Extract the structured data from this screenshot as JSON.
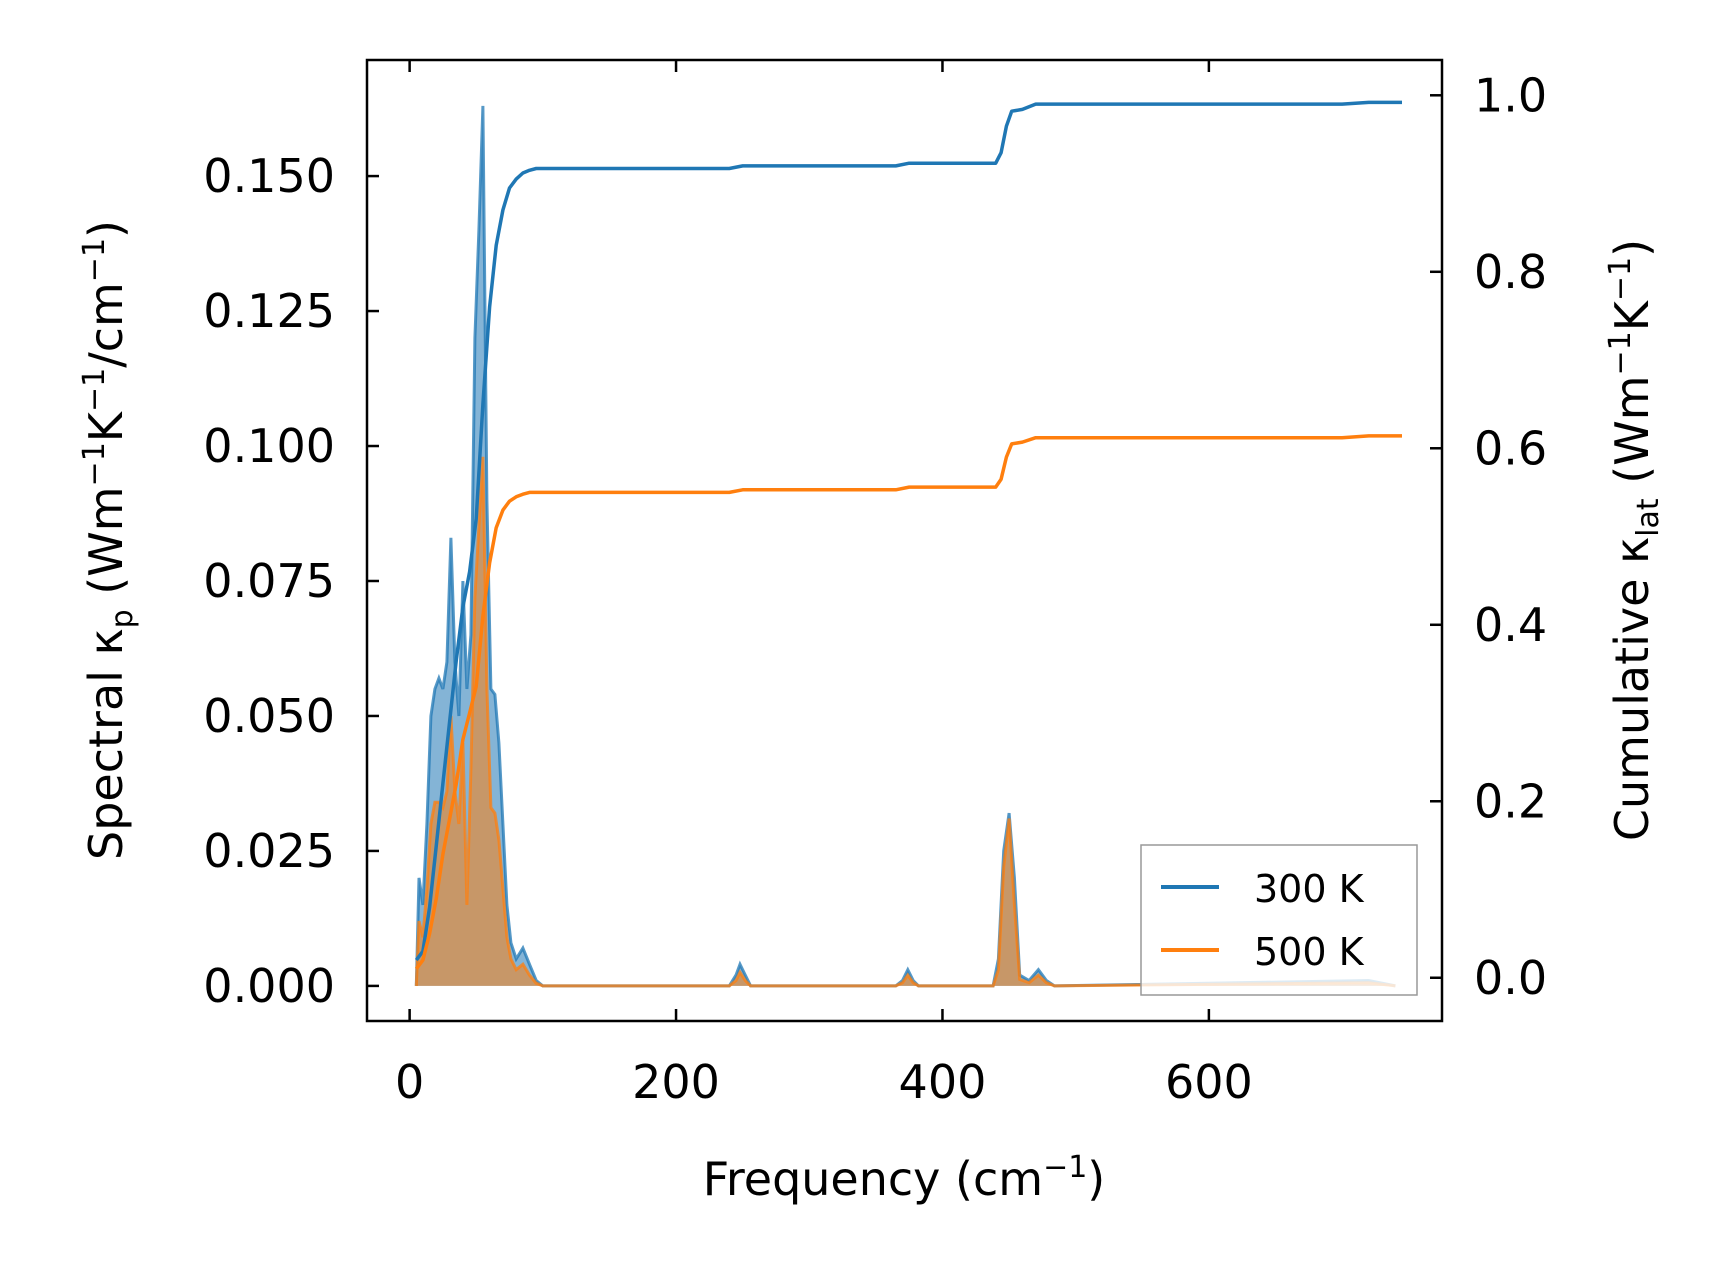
{
  "chart_data": {
    "type": "line",
    "xlabel_main": "Frequency (cm",
    "xlabel_sup": "−1",
    "xlabel_end": ")",
    "ylabel_left": {
      "a": "Spectral κ",
      "b_sub": "p",
      "c": " (Wm",
      "d_sup": "−1",
      "e": "K",
      "f_sup": "−1",
      "g": "/cm",
      "h_sup": "−1",
      "i": ")"
    },
    "ylabel_right": {
      "a": "Cumulative κ",
      "b_sub": "lat",
      "c": " (Wm",
      "d_sup": "−1",
      "e": "K",
      "f_sup": "−1",
      "g": ")"
    },
    "xlim": [
      -32,
      775
    ],
    "ylim_left": [
      -0.0065,
      0.1715
    ],
    "ylim_right": [
      -0.049,
      1.04
    ],
    "x_ticks": [
      0,
      200,
      400,
      600
    ],
    "x_tick_labels": [
      "0",
      "200",
      "400",
      "600"
    ],
    "y_left_ticks": [
      0.0,
      0.025,
      0.05,
      0.075,
      0.1,
      0.125,
      0.15
    ],
    "y_left_tick_labels": [
      "0.000",
      "0.025",
      "0.050",
      "0.075",
      "0.100",
      "0.125",
      "0.150"
    ],
    "y_right_ticks": [
      0.0,
      0.2,
      0.4,
      0.6,
      0.8,
      1.0
    ],
    "y_right_tick_labels": [
      "0.0",
      "0.2",
      "0.4",
      "0.6",
      "0.8",
      "1.0"
    ],
    "legend": {
      "position": "lower-right",
      "entries": [
        "300 K",
        "500 K"
      ]
    },
    "colors": {
      "s300": "#1f77b4",
      "s500": "#ff7f0e"
    },
    "spectral_300K": {
      "x": [
        5,
        7,
        10,
        13,
        16,
        19,
        22,
        25,
        28,
        31,
        34,
        37,
        40,
        43,
        46,
        49,
        52,
        55,
        58,
        61,
        64,
        67,
        70,
        73,
        76,
        80,
        85,
        90,
        95,
        100,
        240,
        245,
        248,
        252,
        256,
        365,
        370,
        374,
        378,
        382,
        438,
        442,
        446,
        450,
        454,
        458,
        465,
        472,
        478,
        484,
        720,
        740
      ],
      "y": [
        0.0,
        0.02,
        0.015,
        0.03,
        0.05,
        0.055,
        0.057,
        0.055,
        0.06,
        0.083,
        0.06,
        0.05,
        0.075,
        0.055,
        0.065,
        0.12,
        0.14,
        0.163,
        0.09,
        0.055,
        0.054,
        0.045,
        0.03,
        0.015,
        0.008,
        0.005,
        0.007,
        0.004,
        0.001,
        0.0,
        0.0,
        0.002,
        0.004,
        0.002,
        0.0,
        0.0,
        0.001,
        0.003,
        0.001,
        0.0,
        0.0,
        0.005,
        0.025,
        0.032,
        0.02,
        0.002,
        0.001,
        0.003,
        0.001,
        0.0,
        0.001,
        0.0
      ]
    },
    "spectral_500K": {
      "x": [
        5,
        7,
        10,
        13,
        16,
        19,
        22,
        25,
        28,
        31,
        34,
        37,
        40,
        43,
        46,
        49,
        52,
        55,
        58,
        61,
        64,
        67,
        70,
        73,
        76,
        80,
        85,
        90,
        95,
        100,
        240,
        245,
        248,
        252,
        256,
        365,
        370,
        374,
        378,
        382,
        438,
        442,
        446,
        450,
        454,
        458,
        465,
        472,
        478,
        484,
        720,
        740
      ],
      "y": [
        0.0,
        0.012,
        0.009,
        0.018,
        0.03,
        0.034,
        0.034,
        0.033,
        0.036,
        0.05,
        0.036,
        0.03,
        0.045,
        0.015,
        0.04,
        0.072,
        0.085,
        0.098,
        0.055,
        0.033,
        0.032,
        0.027,
        0.018,
        0.009,
        0.005,
        0.003,
        0.004,
        0.002,
        0.0005,
        0.0,
        0.0,
        0.001,
        0.0025,
        0.001,
        0.0,
        0.0,
        0.0006,
        0.002,
        0.0006,
        0.0,
        0.0,
        0.003,
        0.022,
        0.031,
        0.015,
        0.0012,
        0.0006,
        0.002,
        0.0006,
        0.0,
        0.0006,
        0.0
      ]
    },
    "cumulative_300K": {
      "x": [
        5,
        10,
        15,
        20,
        25,
        30,
        35,
        40,
        45,
        50,
        55,
        60,
        65,
        70,
        75,
        80,
        85,
        90,
        95,
        100,
        240,
        250,
        260,
        365,
        375,
        380,
        440,
        444,
        448,
        452,
        460,
        470,
        480,
        700,
        720,
        745
      ],
      "y": [
        0.02,
        0.03,
        0.08,
        0.15,
        0.22,
        0.29,
        0.36,
        0.42,
        0.46,
        0.52,
        0.65,
        0.76,
        0.83,
        0.87,
        0.895,
        0.905,
        0.912,
        0.915,
        0.917,
        0.917,
        0.917,
        0.92,
        0.92,
        0.92,
        0.923,
        0.923,
        0.923,
        0.935,
        0.965,
        0.982,
        0.984,
        0.99,
        0.99,
        0.99,
        0.992,
        0.992
      ]
    },
    "cumulative_500K": {
      "x": [
        5,
        10,
        15,
        20,
        25,
        30,
        35,
        40,
        45,
        50,
        55,
        60,
        65,
        70,
        75,
        80,
        85,
        90,
        95,
        100,
        240,
        250,
        260,
        365,
        375,
        380,
        440,
        444,
        448,
        452,
        460,
        470,
        480,
        700,
        720,
        745
      ],
      "y": [
        0.01,
        0.02,
        0.05,
        0.09,
        0.14,
        0.18,
        0.22,
        0.27,
        0.3,
        0.33,
        0.41,
        0.47,
        0.51,
        0.53,
        0.54,
        0.545,
        0.548,
        0.55,
        0.55,
        0.55,
        0.55,
        0.553,
        0.553,
        0.553,
        0.556,
        0.556,
        0.556,
        0.565,
        0.59,
        0.605,
        0.607,
        0.612,
        0.612,
        0.612,
        0.614,
        0.614
      ]
    }
  }
}
